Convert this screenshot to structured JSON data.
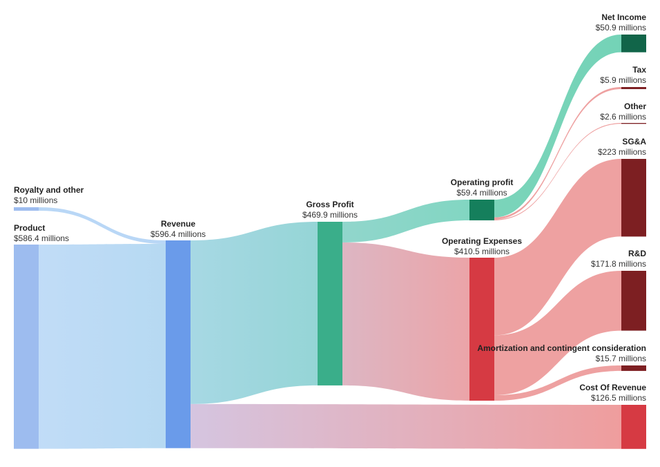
{
  "chart_data": {
    "type": "sankey",
    "unit_prefix": "$",
    "unit_suffix": " millions",
    "nodes": [
      {
        "id": "royalty",
        "name": "Royalty and other",
        "value": 10,
        "value_label": "$10 millions",
        "color": "#9dbcef"
      },
      {
        "id": "product",
        "name": "Product",
        "value": 586.4,
        "value_label": "$586.4 millions",
        "color": "#9dbcef"
      },
      {
        "id": "revenue",
        "name": "Revenue",
        "value": 596.4,
        "value_label": "$596.4 millions",
        "color": "#6a9bea"
      },
      {
        "id": "gross",
        "name": "Gross Profit",
        "value": 469.9,
        "value_label": "$469.9 millions",
        "color": "#3aae8a"
      },
      {
        "id": "cor",
        "name": "Cost Of Revenue",
        "value": 126.5,
        "value_label": "$126.5 millions",
        "color": "#d63a43"
      },
      {
        "id": "opprofit",
        "name": "Operating profit",
        "value": 59.4,
        "value_label": "$59.4 millions",
        "color": "#157f5c"
      },
      {
        "id": "opex",
        "name": "Operating Expenses",
        "value": 410.5,
        "value_label": "$410.5 millions",
        "color": "#d63a43"
      },
      {
        "id": "netincome",
        "name": "Net Income",
        "value": 50.9,
        "value_label": "$50.9 millions",
        "color": "#116549"
      },
      {
        "id": "tax",
        "name": "Tax",
        "value": 5.9,
        "value_label": "$5.9 millions",
        "color": "#7d1f22"
      },
      {
        "id": "other",
        "name": "Other",
        "value": 2.6,
        "value_label": "$2.6 millions",
        "color": "#7d1f22"
      },
      {
        "id": "sga",
        "name": "SG&A",
        "value": 223,
        "value_label": "$223 millions",
        "color": "#7d1f22"
      },
      {
        "id": "rnd",
        "name": "R&D",
        "value": 171.8,
        "value_label": "$171.8 millions",
        "color": "#7d1f22"
      },
      {
        "id": "amort",
        "name": "Amortization and contingent consideration",
        "value": 15.7,
        "value_label": "$15.7 millions",
        "color": "#7d1f22"
      }
    ],
    "links": [
      {
        "source": "royalty",
        "target": "revenue",
        "value": 10,
        "color_from": "#b9d7f6",
        "color_to": "#b9d7f6"
      },
      {
        "source": "product",
        "target": "revenue",
        "value": 586.4,
        "color_from": "#c1dcf7",
        "color_to": "#b6d9f2"
      },
      {
        "source": "revenue",
        "target": "gross",
        "value": 469.9,
        "color_from": "#a7d8e4",
        "color_to": "#95d5d6"
      },
      {
        "source": "revenue",
        "target": "cor",
        "value": 126.5,
        "color_from": "#d5c5e0",
        "color_to": "#ef9d9d"
      },
      {
        "source": "gross",
        "target": "opprofit",
        "value": 59.4,
        "color_from": "#91d6cc",
        "color_to": "#82d6c2"
      },
      {
        "source": "gross",
        "target": "opex",
        "value": 410.5,
        "color_from": "#ddb6c3",
        "color_to": "#eba4a8"
      },
      {
        "source": "opprofit",
        "target": "netincome",
        "value": 50.9,
        "color_from": "#7bd4ba",
        "color_to": "#74d3b7"
      },
      {
        "source": "opprofit",
        "target": "tax",
        "value": 5.9,
        "color_from": "#eea1a1",
        "color_to": "#eea1a1"
      },
      {
        "source": "opprofit",
        "target": "other",
        "value": 2.6,
        "color_from": "#eea1a1",
        "color_to": "#eea1a1"
      },
      {
        "source": "opex",
        "target": "sga",
        "value": 223,
        "color_from": "#eea1a1",
        "color_to": "#eea1a1"
      },
      {
        "source": "opex",
        "target": "rnd",
        "value": 171.8,
        "color_from": "#eea1a1",
        "color_to": "#eea1a1"
      },
      {
        "source": "opex",
        "target": "amort",
        "value": 15.7,
        "color_from": "#eea1a1",
        "color_to": "#eea1a1"
      }
    ]
  }
}
